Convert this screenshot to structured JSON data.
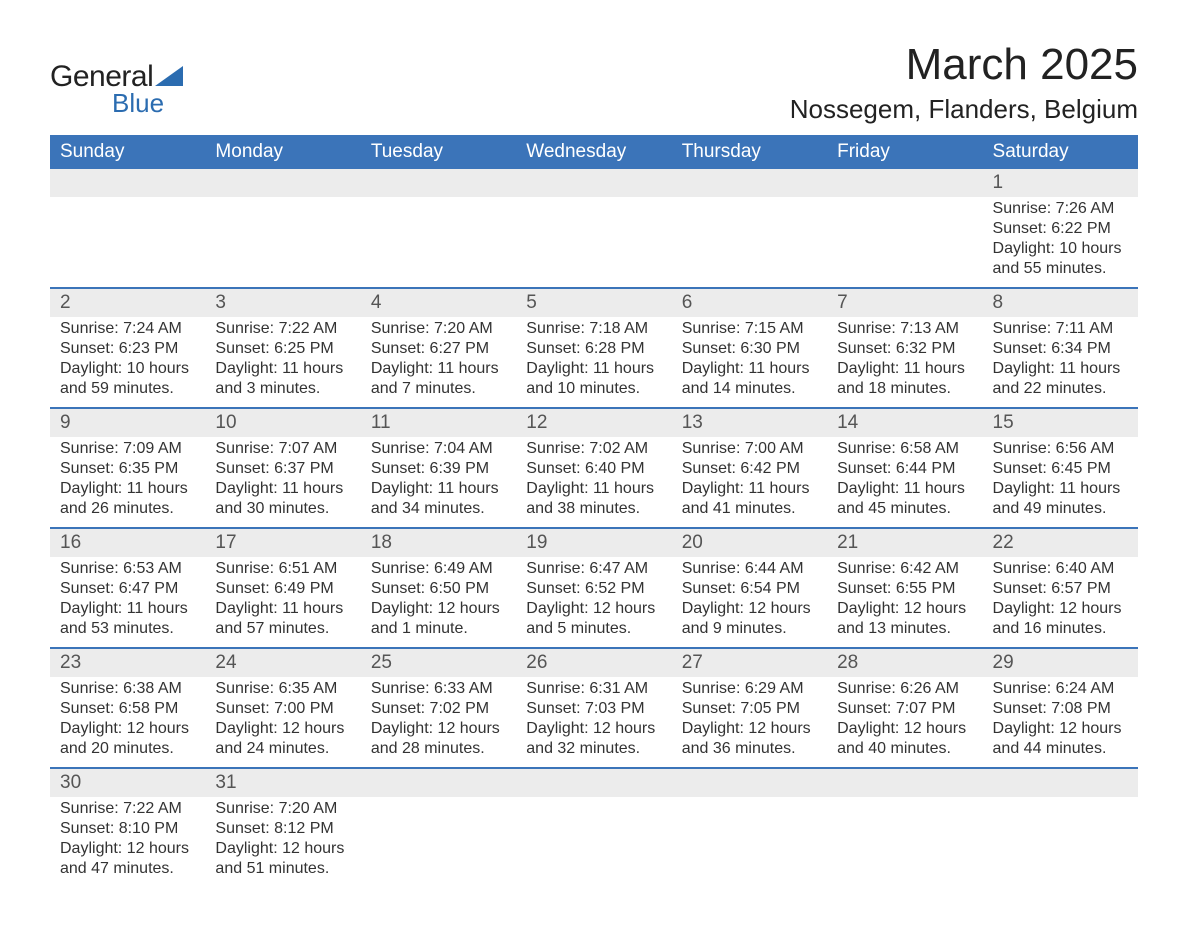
{
  "logo": {
    "text1": "General",
    "text2": "Blue",
    "triangle_color": "#2b6cb0"
  },
  "title": "March 2025",
  "location": "Nossegem, Flanders, Belgium",
  "colors": {
    "header_bg": "#3b74b9",
    "header_fg": "#ffffff",
    "daynum_bg": "#ececec",
    "border": "#3b74b9",
    "text": "#333333",
    "logo_blue": "#2b6cb0"
  },
  "typography": {
    "title_fontsize_pt": 33,
    "location_fontsize_pt": 20,
    "header_fontsize_pt": 14,
    "daynum_fontsize_pt": 14,
    "body_fontsize_pt": 12
  },
  "daynames": [
    "Sunday",
    "Monday",
    "Tuesday",
    "Wednesday",
    "Thursday",
    "Friday",
    "Saturday"
  ],
  "weeks": [
    [
      null,
      null,
      null,
      null,
      null,
      null,
      {
        "n": "1",
        "sunrise": "7:26 AM",
        "sunset": "6:22 PM",
        "daylight": "10 hours and 55 minutes."
      }
    ],
    [
      {
        "n": "2",
        "sunrise": "7:24 AM",
        "sunset": "6:23 PM",
        "daylight": "10 hours and 59 minutes."
      },
      {
        "n": "3",
        "sunrise": "7:22 AM",
        "sunset": "6:25 PM",
        "daylight": "11 hours and 3 minutes."
      },
      {
        "n": "4",
        "sunrise": "7:20 AM",
        "sunset": "6:27 PM",
        "daylight": "11 hours and 7 minutes."
      },
      {
        "n": "5",
        "sunrise": "7:18 AM",
        "sunset": "6:28 PM",
        "daylight": "11 hours and 10 minutes."
      },
      {
        "n": "6",
        "sunrise": "7:15 AM",
        "sunset": "6:30 PM",
        "daylight": "11 hours and 14 minutes."
      },
      {
        "n": "7",
        "sunrise": "7:13 AM",
        "sunset": "6:32 PM",
        "daylight": "11 hours and 18 minutes."
      },
      {
        "n": "8",
        "sunrise": "7:11 AM",
        "sunset": "6:34 PM",
        "daylight": "11 hours and 22 minutes."
      }
    ],
    [
      {
        "n": "9",
        "sunrise": "7:09 AM",
        "sunset": "6:35 PM",
        "daylight": "11 hours and 26 minutes."
      },
      {
        "n": "10",
        "sunrise": "7:07 AM",
        "sunset": "6:37 PM",
        "daylight": "11 hours and 30 minutes."
      },
      {
        "n": "11",
        "sunrise": "7:04 AM",
        "sunset": "6:39 PM",
        "daylight": "11 hours and 34 minutes."
      },
      {
        "n": "12",
        "sunrise": "7:02 AM",
        "sunset": "6:40 PM",
        "daylight": "11 hours and 38 minutes."
      },
      {
        "n": "13",
        "sunrise": "7:00 AM",
        "sunset": "6:42 PM",
        "daylight": "11 hours and 41 minutes."
      },
      {
        "n": "14",
        "sunrise": "6:58 AM",
        "sunset": "6:44 PM",
        "daylight": "11 hours and 45 minutes."
      },
      {
        "n": "15",
        "sunrise": "6:56 AM",
        "sunset": "6:45 PM",
        "daylight": "11 hours and 49 minutes."
      }
    ],
    [
      {
        "n": "16",
        "sunrise": "6:53 AM",
        "sunset": "6:47 PM",
        "daylight": "11 hours and 53 minutes."
      },
      {
        "n": "17",
        "sunrise": "6:51 AM",
        "sunset": "6:49 PM",
        "daylight": "11 hours and 57 minutes."
      },
      {
        "n": "18",
        "sunrise": "6:49 AM",
        "sunset": "6:50 PM",
        "daylight": "12 hours and 1 minute."
      },
      {
        "n": "19",
        "sunrise": "6:47 AM",
        "sunset": "6:52 PM",
        "daylight": "12 hours and 5 minutes."
      },
      {
        "n": "20",
        "sunrise": "6:44 AM",
        "sunset": "6:54 PM",
        "daylight": "12 hours and 9 minutes."
      },
      {
        "n": "21",
        "sunrise": "6:42 AM",
        "sunset": "6:55 PM",
        "daylight": "12 hours and 13 minutes."
      },
      {
        "n": "22",
        "sunrise": "6:40 AM",
        "sunset": "6:57 PM",
        "daylight": "12 hours and 16 minutes."
      }
    ],
    [
      {
        "n": "23",
        "sunrise": "6:38 AM",
        "sunset": "6:58 PM",
        "daylight": "12 hours and 20 minutes."
      },
      {
        "n": "24",
        "sunrise": "6:35 AM",
        "sunset": "7:00 PM",
        "daylight": "12 hours and 24 minutes."
      },
      {
        "n": "25",
        "sunrise": "6:33 AM",
        "sunset": "7:02 PM",
        "daylight": "12 hours and 28 minutes."
      },
      {
        "n": "26",
        "sunrise": "6:31 AM",
        "sunset": "7:03 PM",
        "daylight": "12 hours and 32 minutes."
      },
      {
        "n": "27",
        "sunrise": "6:29 AM",
        "sunset": "7:05 PM",
        "daylight": "12 hours and 36 minutes."
      },
      {
        "n": "28",
        "sunrise": "6:26 AM",
        "sunset": "7:07 PM",
        "daylight": "12 hours and 40 minutes."
      },
      {
        "n": "29",
        "sunrise": "6:24 AM",
        "sunset": "7:08 PM",
        "daylight": "12 hours and 44 minutes."
      }
    ],
    [
      {
        "n": "30",
        "sunrise": "7:22 AM",
        "sunset": "8:10 PM",
        "daylight": "12 hours and 47 minutes."
      },
      {
        "n": "31",
        "sunrise": "7:20 AM",
        "sunset": "8:12 PM",
        "daylight": "12 hours and 51 minutes."
      },
      null,
      null,
      null,
      null,
      null
    ]
  ],
  "labels": {
    "sunrise": "Sunrise: ",
    "sunset": "Sunset: ",
    "daylight": "Daylight: "
  }
}
